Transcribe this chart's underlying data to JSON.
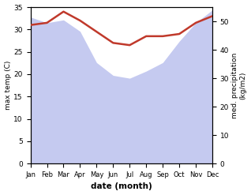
{
  "months": [
    "Jan",
    "Feb",
    "Mar",
    "Apr",
    "May",
    "Jun",
    "Jul",
    "Aug",
    "Sep",
    "Oct",
    "Nov",
    "Dec"
  ],
  "temp_max": [
    31.0,
    31.5,
    34.0,
    32.0,
    29.5,
    27.0,
    26.5,
    28.5,
    28.5,
    29.0,
    31.5,
    33.0
  ],
  "precip": [
    51.5,
    49.5,
    50.5,
    46.5,
    35.5,
    31.0,
    30.0,
    32.5,
    35.5,
    43.0,
    49.5,
    54.0
  ],
  "temp_color": "#c0392b",
  "precip_fill_color": "#c5caf0",
  "temp_ylim": [
    0,
    35
  ],
  "precip_ylim": [
    0,
    55
  ],
  "temp_yticks": [
    0,
    5,
    10,
    15,
    20,
    25,
    30,
    35
  ],
  "precip_yticks": [
    0,
    10,
    20,
    30,
    40,
    50
  ],
  "xlabel": "date (month)",
  "ylabel_left": "max temp (C)",
  "ylabel_right": "med. precipitation\n(kg/m2)",
  "bg_color": "#ffffff"
}
